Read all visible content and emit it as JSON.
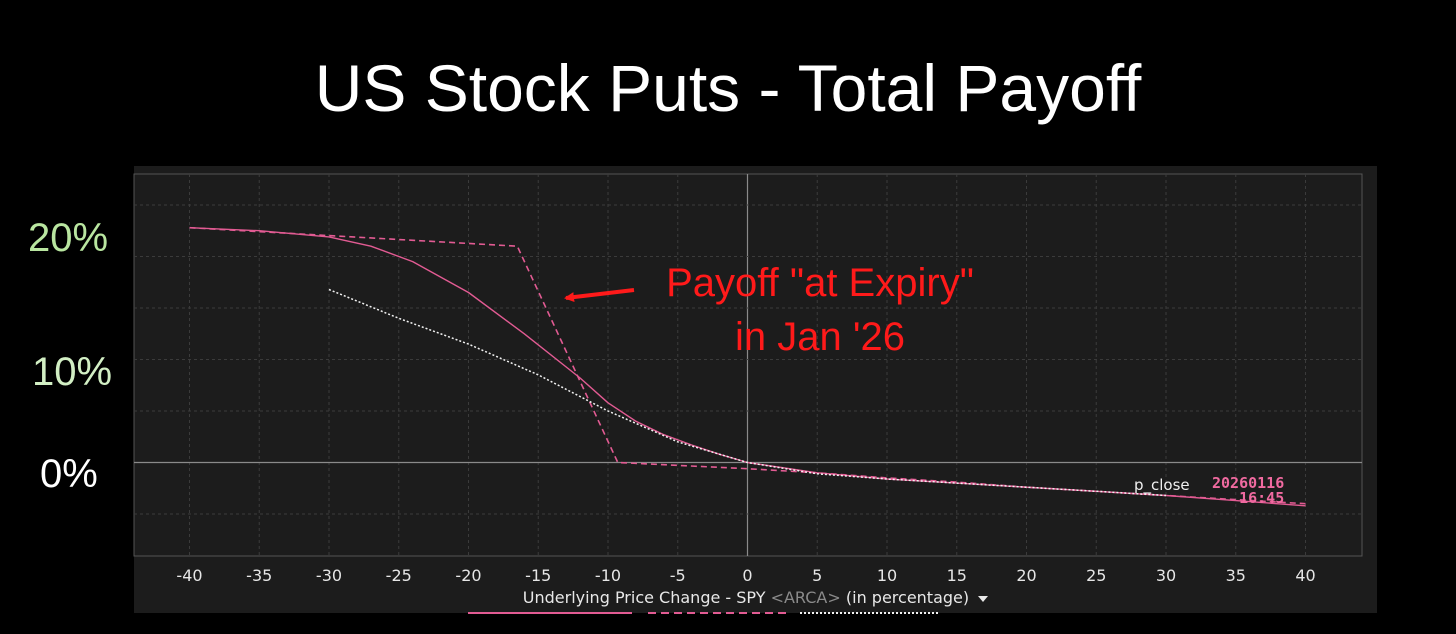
{
  "title": "US Stock Puts - Total Payoff",
  "y_labels": [
    "20%",
    "10%",
    "0%"
  ],
  "x_axis": {
    "label_main": "Underlying Price Change - SPY",
    "label_exchange": "<ARCA>",
    "label_unit": "(in percentage)"
  },
  "annotation": {
    "line1": "Payoff \"at Expiry\"",
    "line2": "in Jan '26"
  },
  "status": {
    "label": "p_close",
    "date": "20260116",
    "time": "16:45"
  },
  "colors": {
    "current_payoff": "#e25b93",
    "expiry_payoff": "#e25b93",
    "other_payoff": "#f2f2f2",
    "annotation": "#ff1a1a",
    "y_label_top": "#b9e6a0",
    "y_label_mid": "#d2efc4",
    "y_label_zero": "#ffffff"
  },
  "chart_data": {
    "type": "line",
    "title": "US Stock Puts - Total Payoff",
    "xlabel": "Underlying Price Change - SPY <ARCA> (in percentage)",
    "ylabel": "",
    "xlim": [
      -44,
      44
    ],
    "ylim": [
      -9,
      28
    ],
    "x_ticks": [
      -40,
      -35,
      -30,
      -25,
      -20,
      -15,
      -10,
      -5,
      0,
      5,
      10,
      15,
      20,
      25,
      30,
      35,
      40
    ],
    "y_ticks": [
      20,
      10,
      0
    ],
    "grid": true,
    "series": [
      {
        "style": "solid",
        "x": [
          -40,
          -35,
          -30,
          -27,
          -24,
          -20,
          -16,
          -12,
          -10,
          -8,
          -6,
          -4,
          -2,
          0,
          5,
          10,
          15,
          20,
          25,
          30,
          35,
          40
        ],
        "y": [
          22.8,
          22.5,
          21.9,
          21.0,
          19.5,
          16.5,
          12.5,
          8.2,
          5.8,
          4.0,
          2.7,
          1.7,
          0.8,
          0.0,
          -1.0,
          -1.6,
          -2.0,
          -2.4,
          -2.8,
          -3.2,
          -3.7,
          -4.2
        ]
      },
      {
        "style": "dashed",
        "x": [
          -40,
          -16.5,
          -9.3,
          0,
          5,
          10,
          15,
          20,
          25,
          30,
          35,
          40
        ],
        "y": [
          22.8,
          21.0,
          0.0,
          -0.6,
          -1.0,
          -1.5,
          -1.9,
          -2.4,
          -2.8,
          -3.2,
          -3.6,
          -4.0
        ]
      },
      {
        "style": "dotted",
        "x": [
          -30,
          -25,
          -20,
          -15,
          -10,
          -5,
          0,
          5,
          10,
          15,
          20,
          25,
          30
        ],
        "y": [
          16.8,
          14.0,
          11.5,
          8.5,
          5.0,
          2.0,
          0.0,
          -1.1,
          -1.6,
          -2.0,
          -2.4,
          -2.8,
          -3.2
        ]
      }
    ]
  }
}
